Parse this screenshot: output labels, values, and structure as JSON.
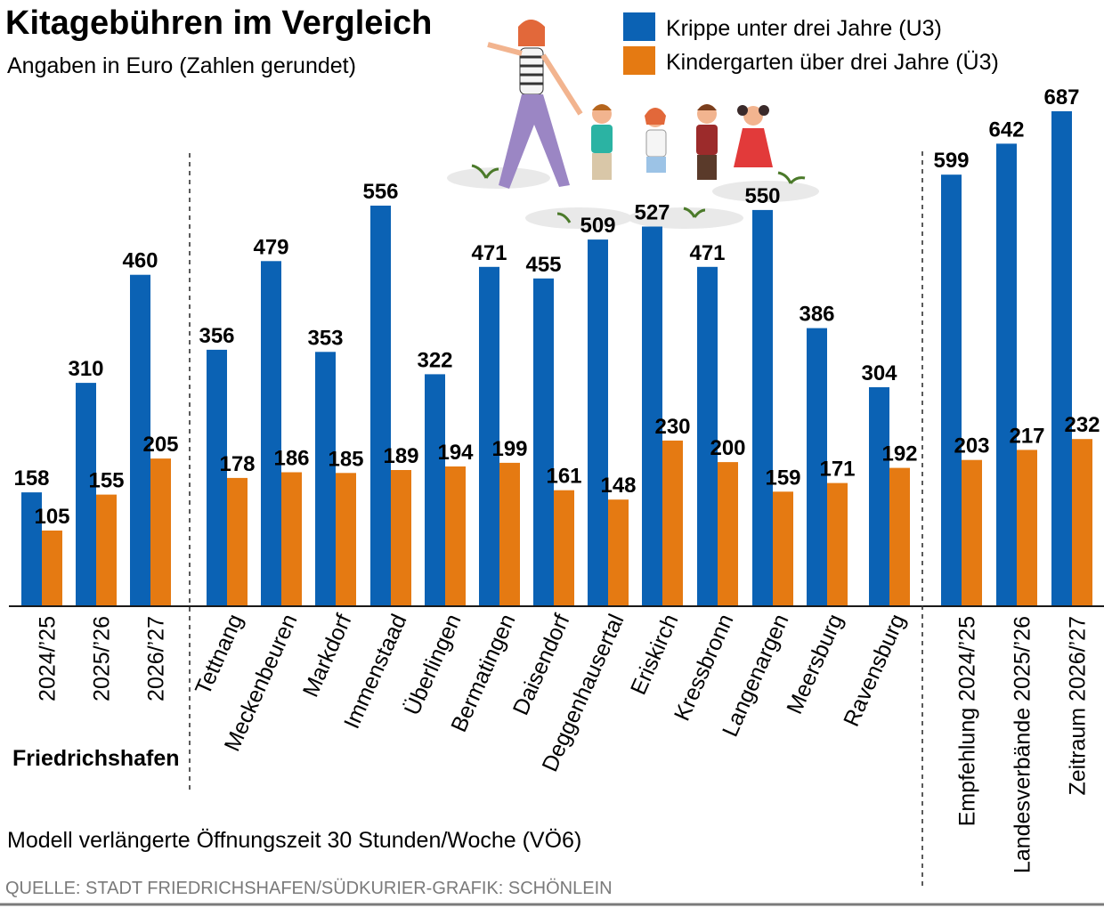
{
  "colors": {
    "u3": "#0b62b4",
    "ue3": "#e57a12",
    "axis": "#1a1a1a",
    "source": "#7a7a7a"
  },
  "header": {
    "title": "Kitagebühren im Vergleich",
    "subtitle": "Angaben in Euro (Zahlen gerundet)"
  },
  "legend": {
    "u3": "Krippe unter drei Jahre (U3)",
    "ue3": "Kindergarten über drei Jahre (Ü3)"
  },
  "illustration": {
    "icon": "family-walking-illustration"
  },
  "footer": {
    "group_label": "Friedrichshafen",
    "note": "Modell verlängerte Öffnungszeit 30 Stunden/Woche (VÖ6)",
    "source": "QUELLE: STADT FRIEDRICHSHAFEN/SÜDKURIER-GRAFIK: SCHÖNLEIN"
  },
  "chart_data": {
    "type": "bar",
    "categories": [
      "2024/’25",
      "2025/’26",
      "2026/’27",
      "Tettnang",
      "Meckenbeuren",
      "Markdorf",
      "Immenstaad",
      "Überlingen",
      "Bermatingen",
      "Daisendorf",
      "Deggenhausertal",
      "Eriskirch",
      "Kressbronn",
      "Langenargen",
      "Meersburg",
      "Ravensburg",
      "Empfehlung 2024/’25",
      "Landesverbände 2025/’26",
      "Zeitraum 2026/’27"
    ],
    "series": [
      {
        "name": "Krippe unter drei Jahre (U3)",
        "values": [
          158,
          310,
          460,
          356,
          479,
          353,
          556,
          322,
          471,
          455,
          509,
          527,
          471,
          550,
          386,
          304,
          599,
          642,
          687
        ]
      },
      {
        "name": "Kindergarten über drei Jahre (Ü3)",
        "values": [
          105,
          155,
          205,
          178,
          186,
          185,
          189,
          194,
          199,
          161,
          148,
          230,
          200,
          159,
          171,
          192,
          203,
          217,
          232
        ]
      }
    ],
    "groups": [
      {
        "label": "Friedrichshafen",
        "from": 0,
        "to": 2
      },
      {
        "label": "",
        "from": 3,
        "to": 15
      },
      {
        "label": "",
        "from": 16,
        "to": 18
      }
    ],
    "ylim": [
      0,
      700
    ],
    "grid": false,
    "legend_position": "top-right"
  }
}
